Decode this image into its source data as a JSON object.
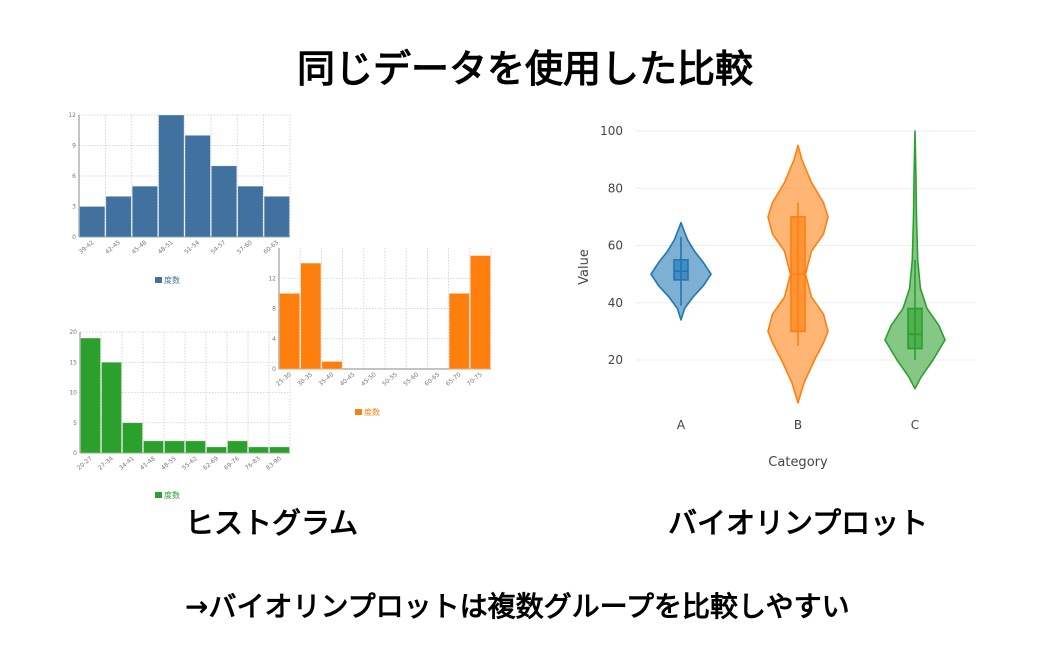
{
  "slide": {
    "title": "同じデータを使用した比較",
    "histogram_label": "ヒストグラム",
    "violin_label": "バイオリンプロット",
    "conclusion": "→バイオリンプロットは複数グループを比較しやすい"
  },
  "chart_data": [
    {
      "type": "bar",
      "legend": "度数",
      "color": "#41729f",
      "categories": [
        "39-42",
        "42-45",
        "45-48",
        "48-51",
        "51-54",
        "54-57",
        "57-60",
        "60-63"
      ],
      "values": [
        3,
        4,
        5,
        12,
        10,
        7,
        5,
        4
      ],
      "yticks": [
        0,
        3,
        6,
        9,
        12
      ],
      "ylim": [
        0,
        12
      ],
      "grid": true,
      "legend_position": "bottom"
    },
    {
      "type": "bar",
      "legend": "度数",
      "color": "#2ca02c",
      "categories": [
        "20-27",
        "27-34",
        "34-41",
        "41-48",
        "48-55",
        "55-62",
        "62-69",
        "69-76",
        "76-83",
        "83-90"
      ],
      "values": [
        19,
        15,
        5,
        2,
        2,
        2,
        1,
        2,
        1,
        1
      ],
      "yticks": [
        0,
        5,
        10,
        15,
        20
      ],
      "ylim": [
        0,
        20
      ],
      "grid": true,
      "legend_position": "bottom"
    },
    {
      "type": "bar",
      "legend": "度数",
      "color": "#ff7f0e",
      "categories": [
        "25-30",
        "30-35",
        "35-40",
        "40-45",
        "45-50",
        "50-55",
        "55-60",
        "60-65",
        "65-70",
        "70-75"
      ],
      "values": [
        10,
        14,
        1,
        0,
        0,
        0,
        0,
        0,
        10,
        15
      ],
      "yticks": [
        0,
        4,
        8,
        12
      ],
      "ylim": [
        0,
        16
      ],
      "grid": true,
      "legend_position": "bottom"
    },
    {
      "type": "violin",
      "xlabel": "Category",
      "ylabel": "Value",
      "categories": [
        "A",
        "B",
        "C"
      ],
      "yticks": [
        20,
        40,
        60,
        80,
        100
      ],
      "ylim": [
        0,
        100
      ],
      "grid": true,
      "series": [
        {
          "category": "A",
          "color": "#1f77b4",
          "min": 34,
          "max": 68,
          "q1": 48,
          "median": 51,
          "q3": 55,
          "whisker_low": 39,
          "whisker_high": 63,
          "density": [
            [
              34,
              0
            ],
            [
              38,
              0.12
            ],
            [
              42,
              0.4
            ],
            [
              46,
              0.75
            ],
            [
              50,
              1
            ],
            [
              54,
              0.75
            ],
            [
              58,
              0.45
            ],
            [
              62,
              0.22
            ],
            [
              66,
              0.07
            ],
            [
              68,
              0
            ]
          ]
        },
        {
          "category": "B",
          "color": "#ff7f0e",
          "min": 5,
          "max": 95,
          "q1": 30,
          "median": 50,
          "q3": 70,
          "whisker_low": 25,
          "whisker_high": 75,
          "density": [
            [
              5,
              0
            ],
            [
              12,
              0.2
            ],
            [
              20,
              0.55
            ],
            [
              26,
              0.85
            ],
            [
              30,
              1
            ],
            [
              36,
              0.85
            ],
            [
              42,
              0.45
            ],
            [
              50,
              0.25
            ],
            [
              58,
              0.45
            ],
            [
              64,
              0.85
            ],
            [
              70,
              1
            ],
            [
              75,
              0.85
            ],
            [
              82,
              0.45
            ],
            [
              90,
              0.13
            ],
            [
              95,
              0
            ]
          ]
        },
        {
          "category": "C",
          "color": "#2ca02c",
          "min": 10,
          "max": 100,
          "q1": 24,
          "median": 29,
          "q3": 38,
          "whisker_low": 20,
          "whisker_high": 55,
          "density": [
            [
              10,
              0
            ],
            [
              14,
              0.2
            ],
            [
              20,
              0.6
            ],
            [
              27,
              1
            ],
            [
              32,
              0.8
            ],
            [
              38,
              0.4
            ],
            [
              45,
              0.18
            ],
            [
              55,
              0.09
            ],
            [
              70,
              0.05
            ],
            [
              85,
              0.03
            ],
            [
              100,
              0
            ]
          ]
        }
      ]
    }
  ]
}
